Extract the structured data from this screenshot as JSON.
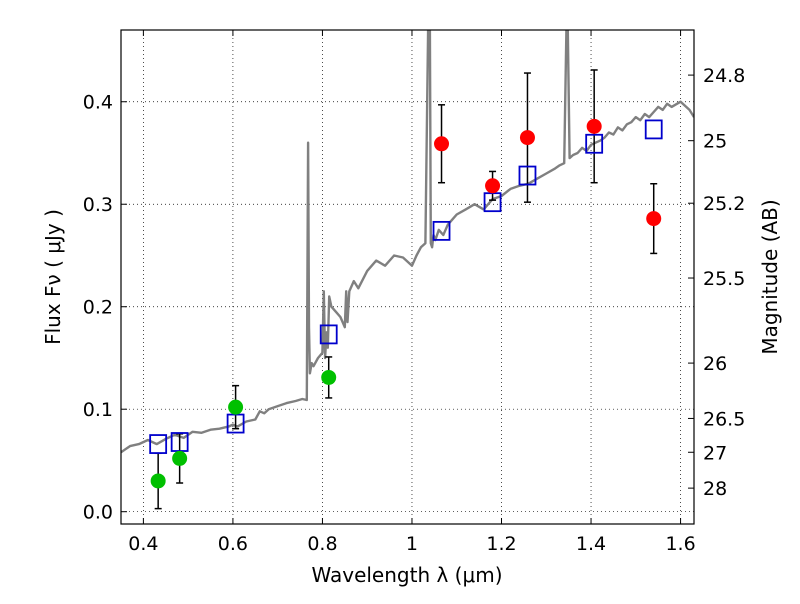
{
  "chart_data": {
    "type": "scatter",
    "title": "",
    "xlabel": "Wavelength  λ (μm)",
    "ylabel": "Flux  Fν  ( μJy )",
    "y2label": "Magnitude (AB)",
    "xlim": [
      0.35,
      1.63
    ],
    "ylim": [
      -0.012,
      0.47
    ],
    "grid": true,
    "x_ticks": [
      0.4,
      0.6,
      0.8,
      1.0,
      1.2,
      1.4,
      1.6
    ],
    "x_tick_labels": [
      "0.4",
      "0.6",
      "0.8",
      "1",
      "1.2",
      "1.4",
      "1.6"
    ],
    "y_ticks": [
      0.0,
      0.1,
      0.2,
      0.3,
      0.4
    ],
    "y_tick_labels": [
      "0.0",
      "0.1",
      "0.2",
      "0.3",
      "0.4"
    ],
    "y2_ticks": [
      {
        "flux": 0.426,
        "label": "24.8"
      },
      {
        "flux": 0.362,
        "label": "25"
      },
      {
        "flux": 0.301,
        "label": "25.2"
      },
      {
        "flux": 0.228,
        "label": "25.5"
      },
      {
        "flux": 0.145,
        "label": "26"
      },
      {
        "flux": 0.091,
        "label": "26.5"
      },
      {
        "flux": 0.058,
        "label": "27"
      },
      {
        "flux": 0.023,
        "label": "28"
      }
    ],
    "colors": {
      "model": "#808080",
      "green": "#00c000",
      "red": "#ff0000",
      "box": "#0000cc",
      "error": "#000000"
    },
    "series": [
      {
        "name": "model spectrum",
        "kind": "line",
        "x": [
          0.35,
          0.37,
          0.39,
          0.41,
          0.43,
          0.45,
          0.47,
          0.49,
          0.51,
          0.53,
          0.55,
          0.57,
          0.59,
          0.6,
          0.61,
          0.63,
          0.65,
          0.66,
          0.67,
          0.68,
          0.7,
          0.72,
          0.74,
          0.755,
          0.765,
          0.768,
          0.77,
          0.772,
          0.776,
          0.78,
          0.79,
          0.8,
          0.803,
          0.806,
          0.809,
          0.812,
          0.815,
          0.82,
          0.83,
          0.84,
          0.85,
          0.853,
          0.856,
          0.86,
          0.87,
          0.88,
          0.9,
          0.92,
          0.94,
          0.96,
          0.98,
          1.0,
          1.01,
          1.02,
          1.03,
          1.036,
          1.04,
          1.042,
          1.045,
          1.048,
          1.052,
          1.06,
          1.07,
          1.08,
          1.09,
          1.1,
          1.12,
          1.14,
          1.16,
          1.18,
          1.2,
          1.22,
          1.24,
          1.26,
          1.28,
          1.3,
          1.32,
          1.33,
          1.34,
          1.345,
          1.348,
          1.352,
          1.36,
          1.37,
          1.38,
          1.39,
          1.4,
          1.41,
          1.42,
          1.43,
          1.44,
          1.45,
          1.46,
          1.47,
          1.48,
          1.49,
          1.5,
          1.51,
          1.52,
          1.53,
          1.54,
          1.55,
          1.56,
          1.57,
          1.58,
          1.6,
          1.62,
          1.63
        ],
        "y": [
          0.058,
          0.064,
          0.066,
          0.07,
          0.066,
          0.071,
          0.075,
          0.072,
          0.078,
          0.077,
          0.08,
          0.081,
          0.083,
          0.085,
          0.083,
          0.088,
          0.09,
          0.098,
          0.096,
          0.1,
          0.103,
          0.106,
          0.108,
          0.11,
          0.109,
          0.36,
          0.18,
          0.135,
          0.145,
          0.142,
          0.15,
          0.155,
          0.215,
          0.15,
          0.175,
          0.16,
          0.21,
          0.2,
          0.195,
          0.19,
          0.18,
          0.215,
          0.185,
          0.215,
          0.225,
          0.218,
          0.235,
          0.245,
          0.24,
          0.25,
          0.248,
          0.24,
          0.25,
          0.258,
          0.262,
          0.47,
          0.47,
          0.262,
          0.258,
          0.27,
          0.265,
          0.275,
          0.27,
          0.28,
          0.285,
          0.29,
          0.295,
          0.3,
          0.295,
          0.305,
          0.308,
          0.315,
          0.318,
          0.32,
          0.325,
          0.33,
          0.335,
          0.338,
          0.34,
          0.47,
          0.47,
          0.345,
          0.348,
          0.35,
          0.355,
          0.352,
          0.358,
          0.36,
          0.362,
          0.365,
          0.37,
          0.368,
          0.375,
          0.372,
          0.378,
          0.38,
          0.385,
          0.382,
          0.388,
          0.385,
          0.39,
          0.395,
          0.392,
          0.398,
          0.395,
          0.4,
          0.392,
          0.385
        ]
      },
      {
        "name": "green measurements",
        "kind": "errorbar",
        "x": [
          0.433,
          0.481,
          0.606,
          0.814
        ],
        "y": [
          0.03,
          0.052,
          0.102,
          0.131
        ],
        "err": [
          0.027,
          0.024,
          0.021,
          0.02
        ]
      },
      {
        "name": "red measurements",
        "kind": "errorbar",
        "x": [
          1.066,
          1.18,
          1.258,
          1.407,
          1.54
        ],
        "y": [
          0.359,
          0.318,
          0.365,
          0.376,
          0.286
        ],
        "err": [
          0.038,
          0.014,
          0.063,
          0.055,
          0.034
        ]
      },
      {
        "name": "model photometry",
        "kind": "squares",
        "x": [
          0.433,
          0.481,
          0.606,
          0.814,
          1.066,
          1.18,
          1.258,
          1.407,
          1.54
        ],
        "y": [
          0.066,
          0.068,
          0.086,
          0.173,
          0.274,
          0.302,
          0.328,
          0.359,
          0.373
        ]
      }
    ]
  }
}
